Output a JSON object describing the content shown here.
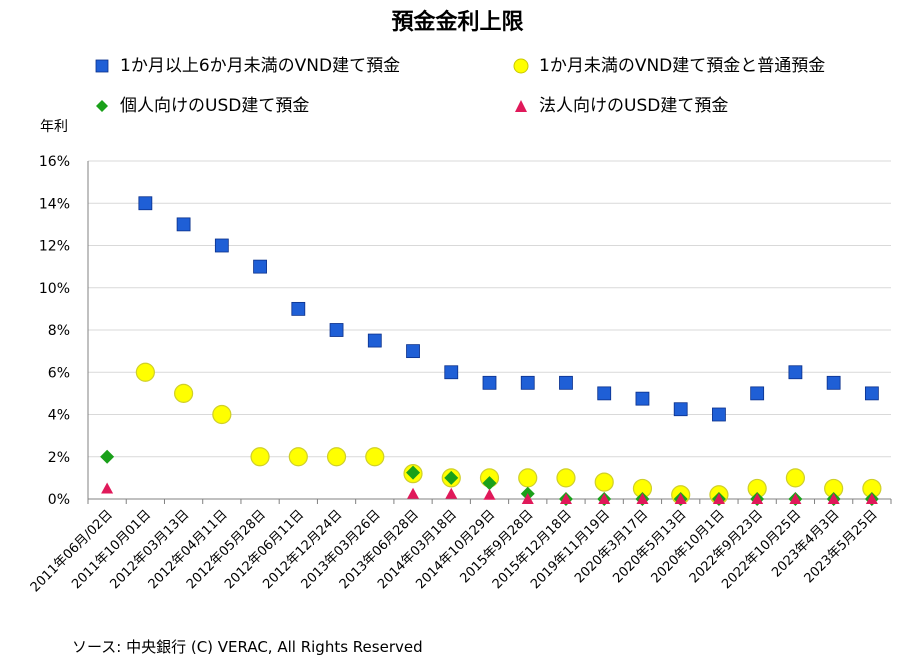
{
  "chart_data": {
    "type": "scatter",
    "title": "預金金利上限",
    "ylabel": "年利",
    "ylim": [
      0,
      16
    ],
    "yticks": [
      "0%",
      "2%",
      "4%",
      "6%",
      "8%",
      "10%",
      "12%",
      "14%",
      "16%"
    ],
    "grid": "horizontal",
    "legend": "top",
    "categories": [
      "2011年06月/02日",
      "2011年10月01日",
      "2012年03月13日",
      "2012年04月11日",
      "2012年05月28日",
      "2012年06月11日",
      "2012年12月24日",
      "2013年03月26日",
      "2013年06月28日",
      "2014年03月18日",
      "2014年10月29日",
      "2015年9月28日",
      "2015年12月18日",
      "2019年11月19日",
      "2020年3月17日",
      "2020年5月13日",
      "2020年10月1日",
      "2022年9月23日",
      "2022年10月25日",
      "2023年4月3日",
      "2023年5月25日"
    ],
    "series": [
      {
        "name": "1か月以上6か月未満のVND建て預金",
        "marker": "square",
        "color": "#1f5fd6",
        "values": [
          null,
          14,
          13,
          12,
          11,
          9,
          8,
          7.5,
          7,
          6,
          5.5,
          5.5,
          5.5,
          5,
          4.75,
          4.25,
          4,
          5,
          6,
          5.5,
          5
        ]
      },
      {
        "name": "1か月未満のVND建て預金と普通預金",
        "marker": "circle",
        "color": "#ffff00",
        "values": [
          null,
          6,
          5,
          4,
          2,
          2,
          2,
          2,
          1.2,
          1,
          1,
          1,
          1,
          0.8,
          0.5,
          0.2,
          0.2,
          0.5,
          1,
          0.5,
          0.5
        ]
      },
      {
        "name": "個人向けのUSD建て預金",
        "marker": "diamond",
        "color": "#1aa01a",
        "values": [
          2,
          null,
          null,
          null,
          null,
          null,
          null,
          null,
          1.25,
          1,
          0.75,
          0.25,
          0,
          0,
          0,
          0,
          0,
          0,
          0,
          0,
          0
        ]
      },
      {
        "name": "法人向けのUSD建て預金",
        "marker": "triangle",
        "color": "#e0195a",
        "values": [
          0.5,
          null,
          null,
          null,
          null,
          null,
          null,
          null,
          0.25,
          0.25,
          0.2,
          0,
          0,
          0,
          0,
          0,
          0,
          0,
          0,
          0,
          0
        ]
      }
    ]
  },
  "source": "ソース: 中央銀行 (C) VERAC, All Rights Reserved"
}
